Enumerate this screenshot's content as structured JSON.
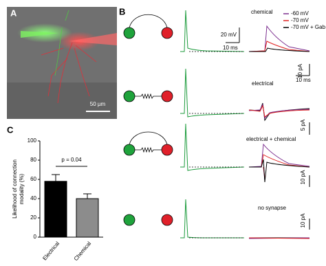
{
  "panel_a": {
    "label": "A",
    "scale_bar": "50 µm"
  },
  "panel_b": {
    "label": "B",
    "legend": [
      {
        "name": "-60 mV",
        "color": "#7b2d8e"
      },
      {
        "name": "-70 mV",
        "color": "#e0201f"
      },
      {
        "name": "-70 mV + Gab",
        "color": "#000000"
      }
    ],
    "rows": [
      {
        "title": "chemical",
        "scales": [
          "20 mV",
          "10 ms",
          "10 pA",
          "10 ms"
        ]
      },
      {
        "title": "electrical",
        "scales": [
          "5 pA"
        ]
      },
      {
        "title": "electrical + chemical",
        "scales": [
          "10 pA"
        ]
      },
      {
        "title": "no synapse",
        "scales": [
          "10 pA"
        ]
      }
    ]
  },
  "chart_data": {
    "type": "bar",
    "label": "C",
    "ylabel": [
      "Likelihood of connection",
      "modality (%)"
    ],
    "categories": [
      "Electrical",
      "Chemical"
    ],
    "values": [
      58,
      40
    ],
    "errors": [
      7,
      5
    ],
    "colors": [
      "#000000",
      "#8c8c8c"
    ],
    "annotation": "p = 0.04",
    "ylim": [
      0,
      100
    ],
    "yticks": [
      0,
      20,
      40,
      60,
      80,
      100
    ]
  }
}
